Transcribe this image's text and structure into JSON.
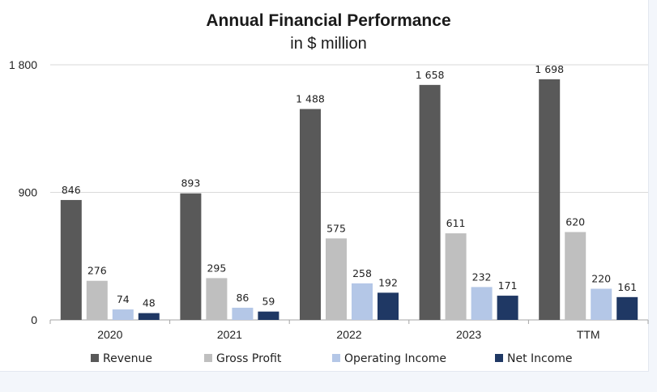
{
  "chart_data": {
    "type": "bar",
    "title": "Annual Financial Performance",
    "subtitle": "in $ million",
    "categories": [
      "2020",
      "2021",
      "2022",
      "2023",
      "TTM"
    ],
    "y_ticks": [
      "0",
      "900",
      "1 800"
    ],
    "ylim": [
      0,
      1800
    ],
    "grid": true,
    "legend_position": "bottom",
    "series": [
      {
        "name": "Revenue",
        "color": "#595959",
        "values": [
          846,
          893,
          1488,
          1658,
          1698
        ],
        "labels": [
          "846",
          "893",
          "1 488",
          "1 658",
          "1 698"
        ]
      },
      {
        "name": "Gross Profit",
        "color": "#bfbfbf",
        "values": [
          276,
          295,
          575,
          611,
          620
        ],
        "labels": [
          "276",
          "295",
          "575",
          "611",
          "620"
        ]
      },
      {
        "name": "Operating Income",
        "color": "#b4c7e7",
        "values": [
          74,
          86,
          258,
          232,
          220
        ],
        "labels": [
          "74",
          "86",
          "258",
          "232",
          "220"
        ]
      },
      {
        "name": "Net Income",
        "color": "#1f3864",
        "values": [
          48,
          59,
          192,
          171,
          161
        ],
        "labels": [
          "48",
          "59",
          "192",
          "171",
          "161"
        ]
      }
    ]
  }
}
